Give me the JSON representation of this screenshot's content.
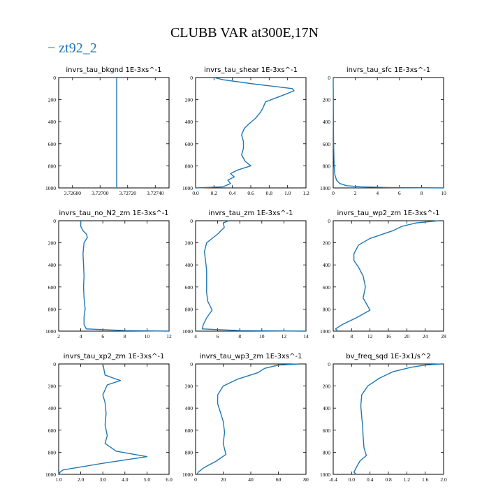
{
  "title": "CLUBB VAR at300E,17N",
  "legend": "− zt92_2",
  "line_color": "#1f77b4",
  "chart_data": [
    {
      "type": "line",
      "title": "invrs_tau_bkgnd   1E-3xs^-1",
      "xlim": [
        3.7267,
        3.7275
      ],
      "xticks": [
        3.7268,
        3.727,
        3.7272,
        3.7274
      ],
      "xtick_labels": [
        "3.72680",
        "3.72700",
        "3.72720",
        "3.72740"
      ],
      "ylim": [
        0,
        1000
      ],
      "yticks": [
        0,
        200,
        400,
        600,
        800,
        1000
      ],
      "ytick_labels": [
        "0",
        "200",
        "400",
        "600",
        "800",
        "1000"
      ],
      "series": [
        {
          "x": [
            3.72712,
            3.72712
          ],
          "y": [
            0,
            1000
          ]
        }
      ]
    },
    {
      "type": "line",
      "title": "invrs_tau_shear   1E-3xs^-1",
      "xlim": [
        0,
        1.2
      ],
      "xticks": [
        0,
        0.2,
        0.4,
        0.6,
        0.8,
        1.0,
        1.2
      ],
      "xtick_labels": [
        "0.0",
        "0.2",
        "0.4",
        "0.6",
        "0.8",
        "1.0",
        "1.2"
      ],
      "ylim": [
        0,
        1000
      ],
      "yticks": [
        0,
        200,
        400,
        600,
        800,
        1000
      ],
      "ytick_labels": [
        "0",
        "200",
        "400",
        "600",
        "800",
        "1000"
      ],
      "series": [
        {
          "x": [
            0.2,
            0.3,
            0.65,
            1.05,
            1.07,
            0.95,
            0.76,
            0.73,
            0.7,
            0.65,
            0.58,
            0.53,
            0.5,
            0.52,
            0.52,
            0.5,
            0.54,
            0.6,
            0.45,
            0.38,
            0.42,
            0.35,
            0.38,
            0.3,
            0.0
          ],
          "y": [
            0,
            20,
            60,
            100,
            120,
            160,
            220,
            280,
            320,
            370,
            420,
            460,
            520,
            580,
            640,
            700,
            760,
            800,
            840,
            870,
            900,
            930,
            960,
            990,
            1000
          ]
        }
      ]
    },
    {
      "type": "line",
      "title": "invrs_tau_sfc   1E-3xs^-1",
      "xlim": [
        0,
        10
      ],
      "xticks": [
        0,
        2,
        4,
        6,
        8,
        10
      ],
      "xtick_labels": [
        "0",
        "2",
        "4",
        "6",
        "8",
        "10"
      ],
      "ylim": [
        0,
        1000
      ],
      "yticks": [
        0,
        200,
        400,
        600,
        800,
        1000
      ],
      "ytick_labels": [
        "0",
        "200",
        "400",
        "600",
        "800",
        "1000"
      ],
      "series": [
        {
          "x": [
            0.0,
            0.02,
            0.04,
            0.08,
            0.15,
            0.3,
            0.6,
            1.2,
            2.5,
            5.0,
            10.0
          ],
          "y": [
            0,
            400,
            600,
            800,
            880,
            930,
            960,
            980,
            990,
            996,
            1000
          ]
        }
      ]
    },
    {
      "type": "line",
      "title": "invrs_tau_no_N2_zm   1E-3xs^-1",
      "xlim": [
        2,
        12
      ],
      "xticks": [
        2,
        4,
        6,
        8,
        10,
        12
      ],
      "xtick_labels": [
        "2",
        "4",
        "6",
        "8",
        "10",
        "12"
      ],
      "ylim": [
        0,
        1000
      ],
      "yticks": [
        0,
        200,
        400,
        600,
        800,
        1000
      ],
      "ytick_labels": [
        "0",
        "200",
        "400",
        "600",
        "800",
        "1000"
      ],
      "series": [
        {
          "x": [
            4.0,
            4.0,
            4.2,
            4.5,
            4.6,
            4.3,
            4.2,
            4.25,
            4.3,
            4.25,
            4.3,
            4.4,
            4.3,
            4.3,
            4.5,
            8.0,
            12.0
          ],
          "y": [
            0,
            50,
            90,
            120,
            150,
            200,
            300,
            400,
            500,
            600,
            700,
            800,
            870,
            940,
            980,
            995,
            1000
          ]
        }
      ]
    },
    {
      "type": "line",
      "title": "invrs_tau_zm   1E-3xs^-1",
      "xlim": [
        4,
        14
      ],
      "xticks": [
        4,
        6,
        8,
        10,
        12,
        14
      ],
      "xtick_labels": [
        "4",
        "6",
        "8",
        "10",
        "12",
        "14"
      ],
      "ylim": [
        0,
        1000
      ],
      "yticks": [
        0,
        200,
        400,
        600,
        800,
        1000
      ],
      "ytick_labels": [
        "0",
        "200",
        "400",
        "600",
        "800",
        "1000"
      ],
      "series": [
        {
          "x": [
            7.0,
            6.5,
            6.6,
            6.0,
            5.0,
            4.8,
            4.9,
            5.0,
            5.0,
            5.0,
            5.1,
            5.5,
            5.0,
            4.7,
            4.6,
            8.0,
            14.0
          ],
          "y": [
            0,
            20,
            60,
            120,
            200,
            280,
            360,
            450,
            550,
            650,
            730,
            810,
            880,
            940,
            980,
            995,
            1000
          ]
        }
      ]
    },
    {
      "type": "line",
      "title": "invrs_tau_wp2_zm   1E-3xs^-1",
      "xlim": [
        4,
        28
      ],
      "xticks": [
        4,
        8,
        12,
        16,
        20,
        24,
        28
      ],
      "xtick_labels": [
        "4",
        "8",
        "12",
        "16",
        "20",
        "24",
        "28"
      ],
      "ylim": [
        0,
        1000
      ],
      "yticks": [
        0,
        200,
        400,
        600,
        800,
        1000
      ],
      "ytick_labels": [
        "0",
        "200",
        "400",
        "600",
        "800",
        "1000"
      ],
      "series": [
        {
          "x": [
            27.0,
            22.0,
            19.0,
            17.0,
            12.0,
            9.5,
            8.5,
            8.5,
            9.5,
            10.5,
            11.0,
            10.5,
            12.0,
            9.0,
            6.0,
            4.5,
            5.0
          ],
          "y": [
            0,
            20,
            50,
            90,
            160,
            220,
            300,
            360,
            420,
            500,
            600,
            700,
            810,
            880,
            940,
            980,
            1000
          ]
        }
      ]
    },
    {
      "type": "line",
      "title": "invrs_tau_xp2_zm   1E-3xs^-1",
      "xlim": [
        1,
        6
      ],
      "xticks": [
        1,
        2,
        3,
        4,
        5,
        6
      ],
      "xtick_labels": [
        "1.0",
        "2.0",
        "3.0",
        "4.0",
        "5.0",
        "6.0"
      ],
      "ylim": [
        0,
        1000
      ],
      "yticks": [
        0,
        200,
        400,
        600,
        800,
        1000
      ],
      "ytick_labels": [
        "0",
        "200",
        "400",
        "600",
        "800",
        "1000"
      ],
      "series": [
        {
          "x": [
            3.0,
            3.1,
            3.5,
            3.8,
            3.2,
            3.0,
            3.1,
            3.15,
            3.1,
            3.2,
            3.1,
            3.6,
            5.0,
            3.0,
            1.2,
            1.0,
            1.1
          ],
          "y": [
            0,
            100,
            130,
            150,
            190,
            280,
            350,
            450,
            550,
            650,
            720,
            790,
            840,
            900,
            960,
            990,
            1000
          ]
        }
      ]
    },
    {
      "type": "line",
      "title": "invrs_tau_wp3_zm   1E-3xs^-1",
      "xlim": [
        0,
        80
      ],
      "xticks": [
        0,
        20,
        40,
        60,
        80
      ],
      "xtick_labels": [
        "0",
        "20",
        "40",
        "60",
        "80"
      ],
      "ylim": [
        0,
        1000
      ],
      "yticks": [
        0,
        200,
        400,
        600,
        800,
        1000
      ],
      "ytick_labels": [
        "0",
        "200",
        "400",
        "600",
        "800",
        "1000"
      ],
      "series": [
        {
          "x": [
            75.0,
            60.0,
            50.0,
            45.0,
            30.0,
            20.0,
            16.0,
            16.0,
            18.0,
            20.0,
            21.0,
            20.0,
            22.0,
            15.0,
            6.0,
            2.0,
            1.0
          ],
          "y": [
            0,
            10,
            40,
            80,
            140,
            200,
            280,
            360,
            440,
            520,
            620,
            720,
            820,
            880,
            940,
            980,
            1000
          ]
        }
      ]
    },
    {
      "type": "line",
      "title": "bv_freq_sqd   1E-3x1/s^2",
      "xlim": [
        -0.4,
        2.0
      ],
      "xticks": [
        -0.4,
        0,
        0.4,
        0.8,
        1.2,
        1.6,
        2.0
      ],
      "xtick_labels": [
        "-0.4",
        "0.0",
        "0.4",
        "0.8",
        "1.2",
        "1.6",
        "2.0"
      ],
      "ylim": [
        0,
        1000
      ],
      "yticks": [
        0,
        200,
        400,
        600,
        800,
        1000
      ],
      "ytick_labels": [
        "0",
        "200",
        "400",
        "600",
        "800",
        "1000"
      ],
      "series": [
        {
          "x": [
            1.95,
            1.6,
            1.3,
            0.9,
            0.6,
            0.35,
            0.22,
            0.2,
            0.22,
            0.24,
            0.25,
            0.27,
            0.32,
            0.18,
            0.1,
            0.05,
            0.1
          ],
          "y": [
            0,
            10,
            30,
            70,
            130,
            200,
            280,
            380,
            480,
            560,
            660,
            760,
            830,
            880,
            940,
            980,
            1000
          ]
        }
      ]
    }
  ]
}
